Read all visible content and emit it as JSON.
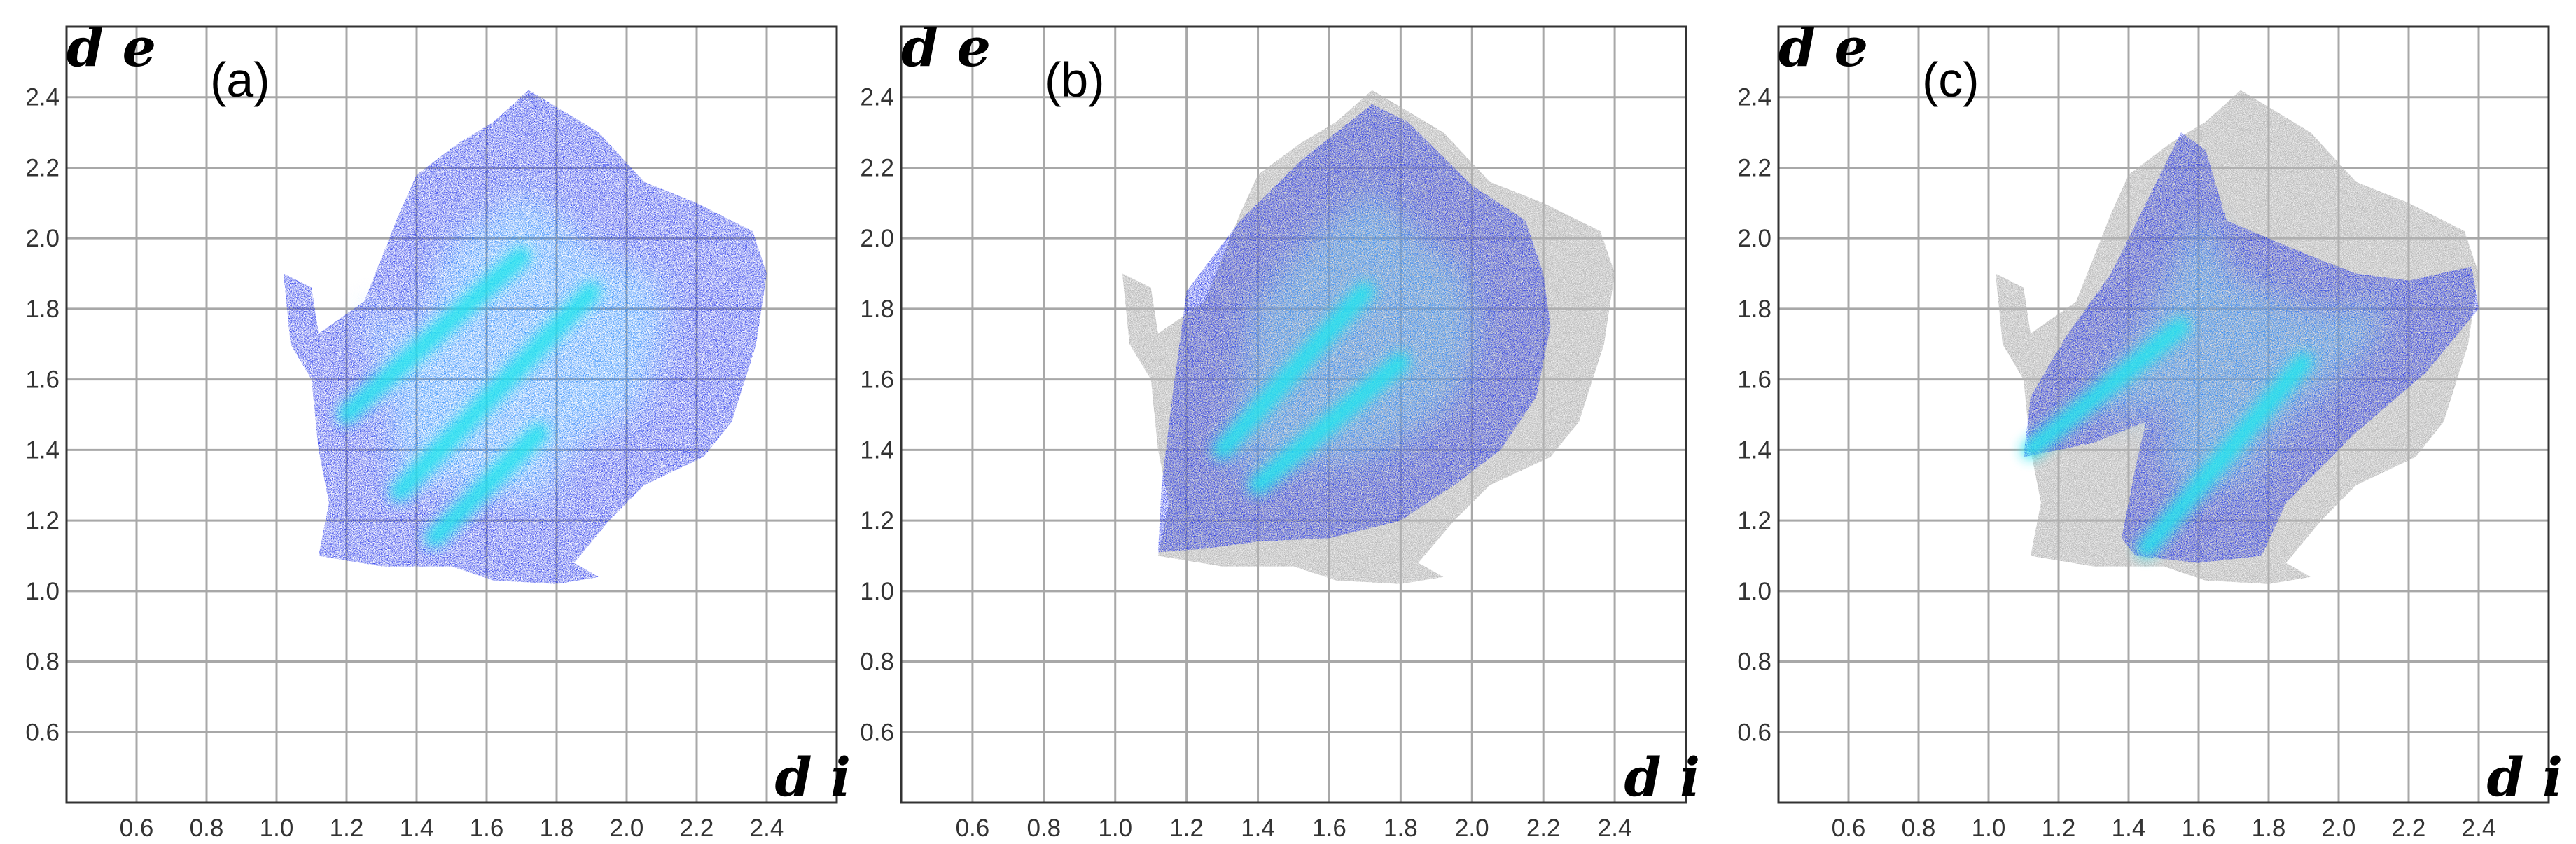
{
  "chart_data": [
    {
      "type": "heatmap",
      "panel_label": "(a)",
      "xlabel": "d i",
      "ylabel": "d e",
      "xlim": [
        0.4,
        2.6
      ],
      "ylim": [
        0.4,
        2.6
      ],
      "x_ticks": [
        "0.6",
        "0.8",
        "1.0",
        "1.2",
        "1.4",
        "1.6",
        "1.8",
        "2.0",
        "2.2",
        "2.4"
      ],
      "y_ticks": [
        "0.6",
        "0.8",
        "1.0",
        "1.2",
        "1.4",
        "1.6",
        "1.8",
        "2.0",
        "2.2",
        "2.4"
      ],
      "grid": true,
      "full_region_outline": [
        [
          1.02,
          1.9
        ],
        [
          1.1,
          1.86
        ],
        [
          1.12,
          1.73
        ],
        [
          1.25,
          1.82
        ],
        [
          1.35,
          2.07
        ],
        [
          1.4,
          2.18
        ],
        [
          1.52,
          2.27
        ],
        [
          1.62,
          2.33
        ],
        [
          1.72,
          2.42
        ],
        [
          1.82,
          2.36
        ],
        [
          1.92,
          2.3
        ],
        [
          2.05,
          2.16
        ],
        [
          2.2,
          2.1
        ],
        [
          2.36,
          2.02
        ],
        [
          2.4,
          1.9
        ],
        [
          2.37,
          1.7
        ],
        [
          2.3,
          1.48
        ],
        [
          2.22,
          1.38
        ],
        [
          2.05,
          1.3
        ],
        [
          1.95,
          1.2
        ],
        [
          1.85,
          1.08
        ],
        [
          1.92,
          1.04
        ],
        [
          1.8,
          1.02
        ],
        [
          1.62,
          1.03
        ],
        [
          1.5,
          1.07
        ],
        [
          1.3,
          1.07
        ],
        [
          1.12,
          1.1
        ],
        [
          1.15,
          1.25
        ],
        [
          1.12,
          1.4
        ],
        [
          1.1,
          1.6
        ],
        [
          1.04,
          1.7
        ]
      ],
      "highlight_region_outline": [
        [
          1.02,
          1.9
        ],
        [
          1.1,
          1.86
        ],
        [
          1.12,
          1.73
        ],
        [
          1.25,
          1.82
        ],
        [
          1.35,
          2.07
        ],
        [
          1.4,
          2.18
        ],
        [
          1.52,
          2.27
        ],
        [
          1.62,
          2.33
        ],
        [
          1.72,
          2.42
        ],
        [
          1.82,
          2.36
        ],
        [
          1.92,
          2.3
        ],
        [
          2.05,
          2.16
        ],
        [
          2.2,
          2.1
        ],
        [
          2.36,
          2.02
        ],
        [
          2.4,
          1.9
        ],
        [
          2.37,
          1.7
        ],
        [
          2.3,
          1.48
        ],
        [
          2.22,
          1.38
        ],
        [
          2.05,
          1.3
        ],
        [
          1.95,
          1.2
        ],
        [
          1.85,
          1.08
        ],
        [
          1.92,
          1.04
        ],
        [
          1.8,
          1.02
        ],
        [
          1.62,
          1.03
        ],
        [
          1.5,
          1.07
        ],
        [
          1.3,
          1.07
        ],
        [
          1.12,
          1.1
        ],
        [
          1.15,
          1.25
        ],
        [
          1.12,
          1.4
        ],
        [
          1.1,
          1.6
        ],
        [
          1.04,
          1.7
        ]
      ],
      "bright_streaks": [
        [
          [
            1.2,
            1.5
          ],
          [
            1.7,
            1.95
          ]
        ],
        [
          [
            1.35,
            1.28
          ],
          [
            1.9,
            1.85
          ]
        ],
        [
          [
            1.45,
            1.15
          ],
          [
            1.75,
            1.45
          ]
        ]
      ],
      "colors": {
        "density_low": "#1a2be8",
        "density_mid": "#1f8fff",
        "density_high": "#22e5ee",
        "background_region": "#b4b4b4"
      }
    },
    {
      "type": "heatmap",
      "panel_label": "(b)",
      "xlabel": "d i",
      "ylabel": "d e",
      "xlim": [
        0.4,
        2.6
      ],
      "ylim": [
        0.4,
        2.6
      ],
      "x_ticks": [
        "0.6",
        "0.8",
        "1.0",
        "1.2",
        "1.4",
        "1.6",
        "1.8",
        "2.0",
        "2.2",
        "2.4"
      ],
      "y_ticks": [
        "0.6",
        "0.8",
        "1.0",
        "1.2",
        "1.4",
        "1.6",
        "1.8",
        "2.0",
        "2.2",
        "2.4"
      ],
      "grid": true,
      "full_region_outline": [
        [
          1.02,
          1.9
        ],
        [
          1.1,
          1.86
        ],
        [
          1.12,
          1.73
        ],
        [
          1.25,
          1.82
        ],
        [
          1.35,
          2.07
        ],
        [
          1.4,
          2.18
        ],
        [
          1.52,
          2.27
        ],
        [
          1.62,
          2.33
        ],
        [
          1.72,
          2.42
        ],
        [
          1.82,
          2.36
        ],
        [
          1.92,
          2.3
        ],
        [
          2.05,
          2.16
        ],
        [
          2.2,
          2.1
        ],
        [
          2.36,
          2.02
        ],
        [
          2.4,
          1.9
        ],
        [
          2.37,
          1.7
        ],
        [
          2.3,
          1.48
        ],
        [
          2.22,
          1.38
        ],
        [
          2.05,
          1.3
        ],
        [
          1.95,
          1.2
        ],
        [
          1.85,
          1.08
        ],
        [
          1.92,
          1.04
        ],
        [
          1.8,
          1.02
        ],
        [
          1.62,
          1.03
        ],
        [
          1.5,
          1.07
        ],
        [
          1.3,
          1.07
        ],
        [
          1.12,
          1.1
        ],
        [
          1.15,
          1.25
        ],
        [
          1.12,
          1.4
        ],
        [
          1.1,
          1.6
        ],
        [
          1.04,
          1.7
        ]
      ],
      "highlight_region_outline": [
        [
          1.2,
          1.85
        ],
        [
          1.35,
          2.05
        ],
        [
          1.52,
          2.22
        ],
        [
          1.62,
          2.3
        ],
        [
          1.72,
          2.38
        ],
        [
          1.82,
          2.33
        ],
        [
          1.9,
          2.25
        ],
        [
          2.0,
          2.15
        ],
        [
          2.15,
          2.05
        ],
        [
          2.2,
          1.9
        ],
        [
          2.22,
          1.75
        ],
        [
          2.18,
          1.55
        ],
        [
          2.08,
          1.4
        ],
        [
          1.95,
          1.3
        ],
        [
          1.8,
          1.2
        ],
        [
          1.6,
          1.15
        ],
        [
          1.4,
          1.14
        ],
        [
          1.25,
          1.12
        ],
        [
          1.12,
          1.11
        ],
        [
          1.13,
          1.3
        ],
        [
          1.16,
          1.55
        ]
      ],
      "bright_streaks": [
        [
          [
            1.3,
            1.4
          ],
          [
            1.7,
            1.85
          ]
        ],
        [
          [
            1.4,
            1.3
          ],
          [
            1.8,
            1.65
          ]
        ]
      ],
      "colors": {
        "density_low": "#1a2be8",
        "density_mid": "#1f8fff",
        "density_high": "#22e5ee",
        "background_region": "#b4b4b4"
      }
    },
    {
      "type": "heatmap",
      "panel_label": "(c)",
      "xlabel": "d i",
      "ylabel": "d e",
      "xlim": [
        0.4,
        2.6
      ],
      "ylim": [
        0.4,
        2.6
      ],
      "x_ticks": [
        "0.6",
        "0.8",
        "1.0",
        "1.2",
        "1.4",
        "1.6",
        "1.8",
        "2.0",
        "2.2",
        "2.4"
      ],
      "y_ticks": [
        "0.6",
        "0.8",
        "1.0",
        "1.2",
        "1.4",
        "1.6",
        "1.8",
        "2.0",
        "2.2",
        "2.4"
      ],
      "grid": true,
      "full_region_outline": [
        [
          1.02,
          1.9
        ],
        [
          1.1,
          1.86
        ],
        [
          1.12,
          1.73
        ],
        [
          1.25,
          1.82
        ],
        [
          1.35,
          2.07
        ],
        [
          1.4,
          2.18
        ],
        [
          1.52,
          2.27
        ],
        [
          1.62,
          2.33
        ],
        [
          1.72,
          2.42
        ],
        [
          1.82,
          2.36
        ],
        [
          1.92,
          2.3
        ],
        [
          2.05,
          2.16
        ],
        [
          2.2,
          2.1
        ],
        [
          2.36,
          2.02
        ],
        [
          2.4,
          1.9
        ],
        [
          2.37,
          1.7
        ],
        [
          2.3,
          1.48
        ],
        [
          2.22,
          1.38
        ],
        [
          2.05,
          1.3
        ],
        [
          1.95,
          1.2
        ],
        [
          1.85,
          1.08
        ],
        [
          1.92,
          1.04
        ],
        [
          1.8,
          1.02
        ],
        [
          1.62,
          1.03
        ],
        [
          1.5,
          1.07
        ],
        [
          1.3,
          1.07
        ],
        [
          1.12,
          1.1
        ],
        [
          1.15,
          1.25
        ],
        [
          1.12,
          1.4
        ],
        [
          1.1,
          1.6
        ],
        [
          1.04,
          1.7
        ]
      ],
      "highlight_region_outline": [
        [
          1.1,
          1.38
        ],
        [
          1.12,
          1.55
        ],
        [
          1.22,
          1.72
        ],
        [
          1.35,
          1.9
        ],
        [
          1.45,
          2.1
        ],
        [
          1.55,
          2.3
        ],
        [
          1.62,
          2.25
        ],
        [
          1.68,
          2.05
        ],
        [
          1.8,
          2.0
        ],
        [
          1.92,
          1.95
        ],
        [
          2.05,
          1.9
        ],
        [
          2.2,
          1.88
        ],
        [
          2.38,
          1.92
        ],
        [
          2.4,
          1.8
        ],
        [
          2.25,
          1.62
        ],
        [
          2.05,
          1.45
        ],
        [
          1.85,
          1.25
        ],
        [
          1.78,
          1.1
        ],
        [
          1.6,
          1.08
        ],
        [
          1.42,
          1.1
        ],
        [
          1.38,
          1.15
        ],
        [
          1.42,
          1.35
        ],
        [
          1.45,
          1.48
        ],
        [
          1.3,
          1.42
        ]
      ],
      "bright_streaks": [
        [
          [
            1.12,
            1.4
          ],
          [
            1.55,
            1.75
          ]
        ],
        [
          [
            1.45,
            1.12
          ],
          [
            1.9,
            1.65
          ]
        ]
      ],
      "colors": {
        "density_low": "#1a2be8",
        "density_mid": "#1f8fff",
        "density_high": "#22e5ee",
        "background_region": "#b4b4b4"
      }
    }
  ]
}
